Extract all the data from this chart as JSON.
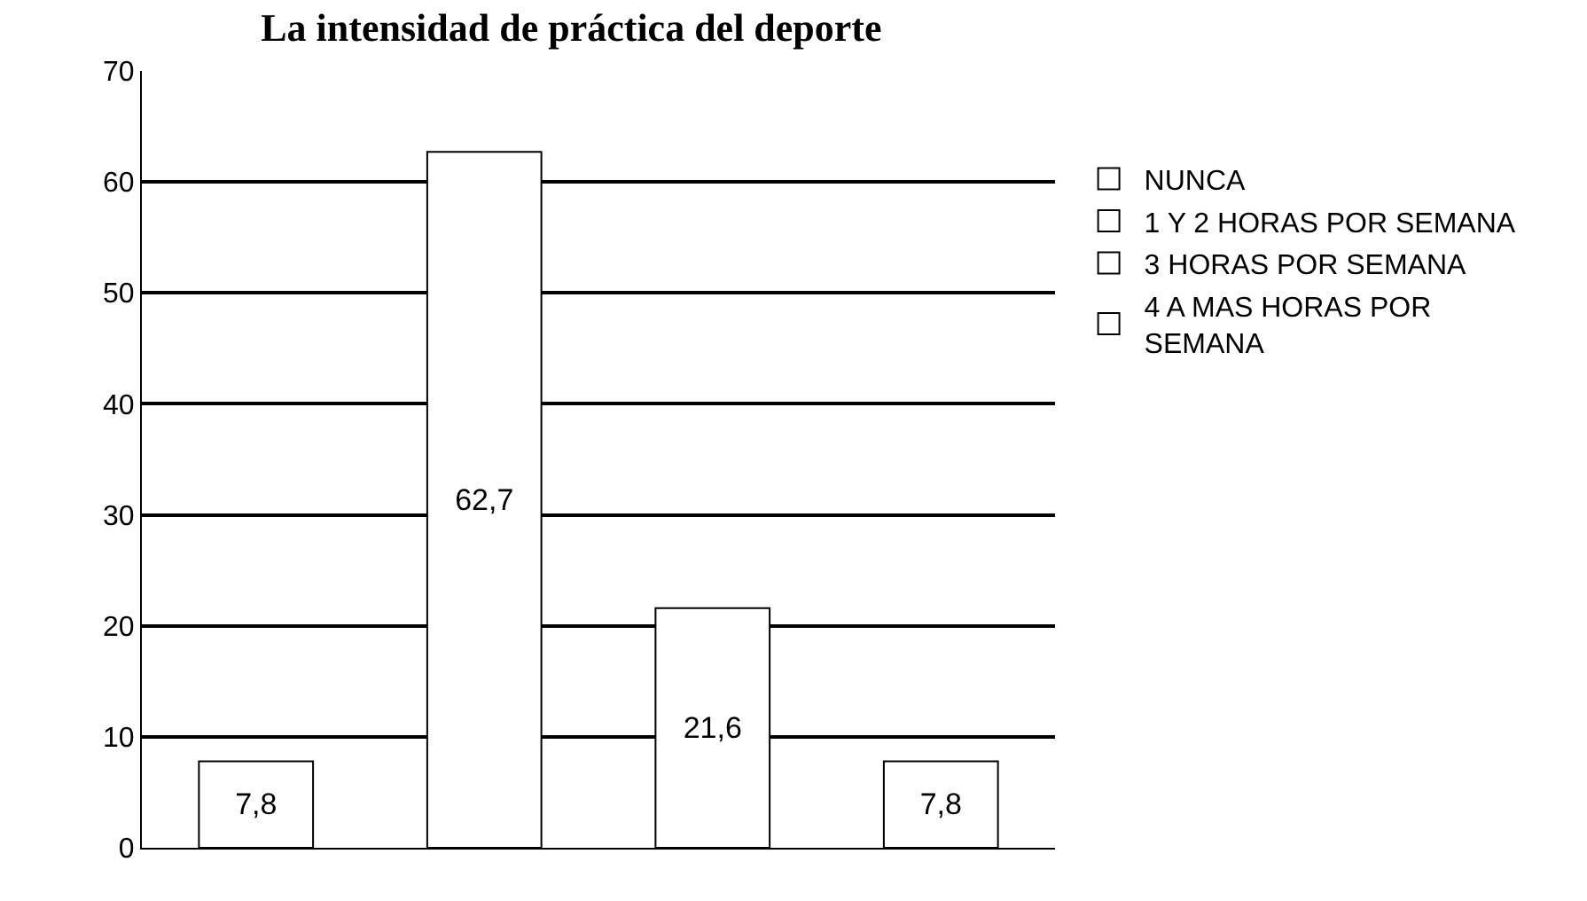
{
  "chart_data": {
    "type": "bar",
    "title": "La intensidad de práctica del deporte",
    "categories": [
      null,
      null,
      null,
      null
    ],
    "series": [
      {
        "name": "NUNCA",
        "color": "#ffffff",
        "values": [
          7.8,
          null,
          null,
          null
        ],
        "value_labels": [
          "7,8",
          null,
          null,
          null
        ]
      },
      {
        "name": "1 Y 2 HORAS POR SEMANA",
        "color": "#ffffff",
        "values": [
          null,
          62.7,
          null,
          null
        ],
        "value_labels": [
          null,
          "62,7",
          null,
          null
        ]
      },
      {
        "name": "3 HORAS POR SEMANA",
        "color": "#ffffff",
        "values": [
          null,
          null,
          21.6,
          null
        ],
        "value_labels": [
          null,
          null,
          "21,6",
          null
        ]
      },
      {
        "name": "4 A MAS HORAS POR SEMANA",
        "color": "#ffffff",
        "values": [
          null,
          null,
          null,
          7.8
        ],
        "value_labels": [
          null,
          null,
          null,
          "7,8"
        ]
      }
    ],
    "ylim": [
      0,
      70
    ],
    "yticks": [
      0,
      10,
      20,
      30,
      40,
      50,
      60,
      70
    ],
    "grid": "y",
    "legend": "right"
  }
}
